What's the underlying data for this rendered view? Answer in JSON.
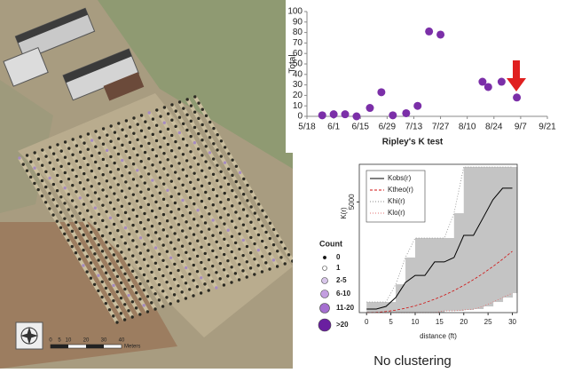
{
  "chart_data": [
    {
      "type": "scatter",
      "y_label": "Total",
      "color": "#7b2fa8",
      "x": [
        8,
        14,
        20,
        26,
        33,
        39,
        45,
        52,
        58,
        64,
        70,
        92,
        95,
        102,
        110
      ],
      "values": [
        1,
        2,
        2,
        0,
        8,
        23,
        1,
        3,
        10,
        81,
        78,
        33,
        28,
        33,
        18
      ],
      "xlim": [
        0,
        126
      ],
      "xticks": [
        {
          "value": 0,
          "label": "5/18"
        },
        {
          "value": 14,
          "label": "6/1"
        },
        {
          "value": 28,
          "label": "6/15"
        },
        {
          "value": 42,
          "label": "6/29"
        },
        {
          "value": 56,
          "label": "7/13"
        },
        {
          "value": 70,
          "label": "7/27"
        },
        {
          "value": 84,
          "label": "8/10"
        },
        {
          "value": 98,
          "label": "8/24"
        },
        {
          "value": 112,
          "label": "9/7"
        },
        {
          "value": 126,
          "label": "9/21"
        }
      ],
      "ylim": [
        0,
        100
      ],
      "yticks": [
        0,
        10,
        20,
        30,
        40,
        50,
        60,
        70,
        80,
        90,
        100
      ]
    },
    {
      "type": "line",
      "title": "Ripley's K test",
      "x_label": "distance (ft)",
      "y_label": "K(r)",
      "x": [
        0,
        2,
        4,
        6,
        8,
        10,
        12,
        14,
        16,
        18,
        20,
        22,
        24,
        26,
        28,
        30
      ],
      "series": [
        {
          "name": "Kobs(r)",
          "color": "#000000",
          "style": "solid",
          "values": [
            160,
            160,
            280,
            680,
            1360,
            1680,
            1680,
            2290,
            2290,
            2490,
            3490,
            3490,
            4290,
            5100,
            5620,
            5620
          ]
        },
        {
          "name": "Ktheo(r)",
          "color": "#d01010",
          "style": "dashed",
          "values": [
            0,
            12,
            49,
            111,
            197,
            308,
            444,
            604,
            789,
            998,
            1232,
            1491,
            1774,
            2082,
            2415,
            2772
          ]
        },
        {
          "name": "Khi(r)",
          "color": "#8a8a8a",
          "style": "dotted",
          "values": [
            480,
            480,
            480,
            1280,
            2490,
            3370,
            3370,
            3370,
            3370,
            4490,
            6580,
            6580,
            6580,
            6580,
            6580,
            6580
          ]
        },
        {
          "name": "Klo(r)",
          "color": "#e07070",
          "style": "dotted",
          "values": [
            0,
            0,
            0,
            0,
            0,
            0,
            0,
            0,
            80,
            80,
            120,
            160,
            280,
            480,
            680,
            880
          ]
        }
      ],
      "envelope_color": "#c4c4c4",
      "xlim": [
        -1.5,
        31
      ],
      "xticks": [
        0,
        5,
        10,
        15,
        20,
        25,
        30
      ],
      "ylim": [
        0,
        6700
      ],
      "yticks": [
        5000
      ]
    }
  ],
  "map_legend": {
    "title": "Count",
    "items": [
      "0",
      "1",
      "2-5",
      "6-10",
      "11-20",
      ">20"
    ]
  },
  "scale_bar": {
    "labels": [
      "0",
      "5",
      "10",
      "20",
      "30",
      "40"
    ],
    "unit": "Meters"
  },
  "caption": "No clustering"
}
